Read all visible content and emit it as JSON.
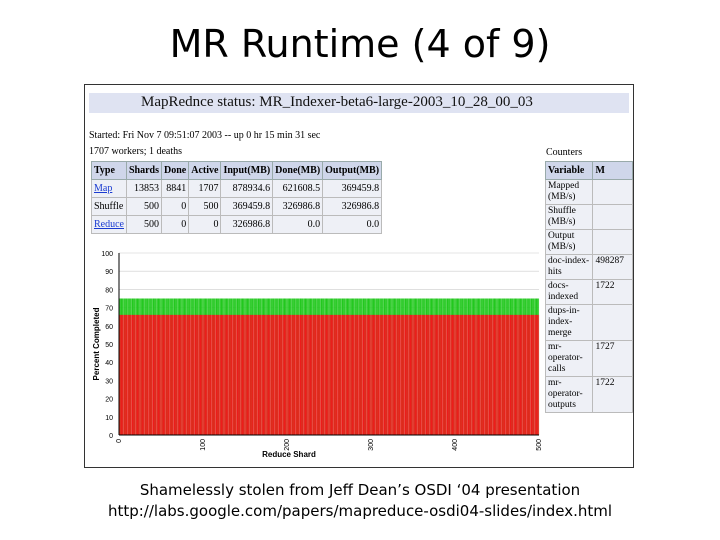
{
  "slide": {
    "title": "MR Runtime (4 of 9)",
    "caption_line1": "Shamelessly stolen from Jeff Dean’s OSDI ‘04 presentation",
    "caption_line2": "http://labs.google.com/papers/mapreduce-osdi04-slides/index.html"
  },
  "status": {
    "title": "MapRednce status: MR_Indexer-beta6-large-2003_10_28_00_03",
    "started": "Started: Fri Nov 7 09:51:07 2003 -- up 0 hr 15 min 31 sec",
    "workers": "1707 workers; 1 deaths"
  },
  "jobs_table": {
    "headers": [
      "Type",
      "Shards",
      "Done",
      "Active",
      "Input(MB)",
      "Done(MB)",
      "Output(MB)"
    ],
    "rows": [
      [
        "Map",
        "13853",
        "8841",
        "1707",
        "878934.6",
        "621608.5",
        "369459.8"
      ],
      [
        "Shuffle",
        "500",
        "0",
        "500",
        "369459.8",
        "326986.8",
        "326986.8"
      ],
      [
        "Reduce",
        "500",
        "0",
        "0",
        "326986.8",
        "0.0",
        "0.0"
      ]
    ]
  },
  "counters": {
    "label": "Counters",
    "headers": [
      "Variable",
      "M"
    ],
    "rows": [
      [
        "Mapped (MB/s)",
        ""
      ],
      [
        "Shuffle (MB/s)",
        ""
      ],
      [
        "Output (MB/s)",
        ""
      ],
      [
        "doc-index-hits",
        "498287"
      ],
      [
        "docs-indexed",
        "1722"
      ],
      [
        "dups-in-index-merge",
        ""
      ],
      [
        "mr-operator-calls",
        "1727"
      ],
      [
        "mr-operator-outputs",
        "1722"
      ]
    ]
  },
  "chart_data": {
    "type": "bar",
    "xlabel": "Reduce Shard",
    "ylabel": "Percent Completed",
    "xlim": [
      0,
      500
    ],
    "ylim": [
      0,
      100
    ],
    "xticks": [
      "0",
      "100",
      "200",
      "300",
      "400",
      "500"
    ],
    "yticks": [
      "0",
      "10",
      "20",
      "30",
      "40",
      "50",
      "60",
      "70",
      "80",
      "90",
      "100"
    ],
    "shard_count": 500,
    "series": [
      {
        "name": "",
        "value": 66,
        "color": "#ee1c1c"
      },
      {
        "name": "",
        "value": 75,
        "color": "#22c81e"
      }
    ]
  }
}
